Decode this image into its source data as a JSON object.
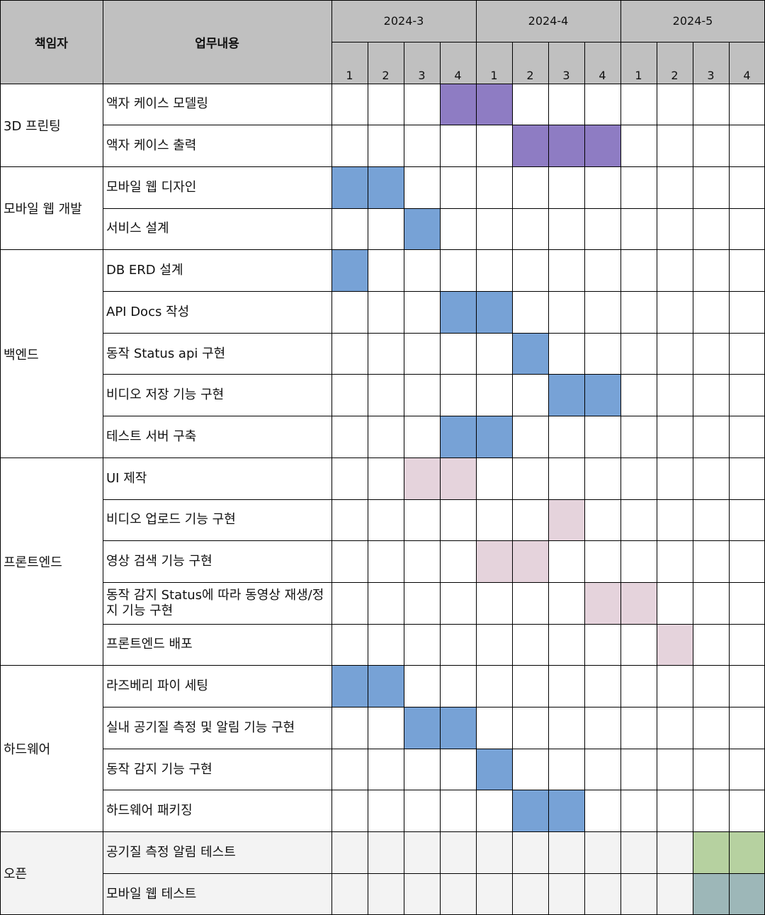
{
  "header": {
    "owner_label": "책임자",
    "task_label": "업무내용",
    "months": [
      "2024-3",
      "2024-4",
      "2024-5"
    ],
    "weeks": [
      "1",
      "2",
      "3",
      "4"
    ]
  },
  "colors": {
    "header_bg": "#c0c0c0",
    "purple": "#8e7cc3",
    "blue": "#77a2d6",
    "pink": "#e5d3dc",
    "green": "#b6d1a0",
    "teal": "#9db7b8",
    "open_row_bg": "#f3f3f3"
  },
  "groups": [
    {
      "name": "3D 프린팅",
      "tasks": [
        {
          "name": "액자 케이스 모델링",
          "color": "purple",
          "weeks": [
            3,
            4
          ]
        },
        {
          "name": "액자 케이스 출력",
          "color": "purple",
          "weeks": [
            5,
            6,
            7
          ]
        }
      ]
    },
    {
      "name": "모바일 웹 개발",
      "tasks": [
        {
          "name": "모바일 웹 디자인",
          "color": "blue",
          "weeks": [
            0,
            1
          ]
        },
        {
          "name": "서비스 설계",
          "color": "blue",
          "weeks": [
            2
          ]
        }
      ]
    },
    {
      "name": "백엔드",
      "tasks": [
        {
          "name": "DB ERD 설계",
          "color": "blue",
          "weeks": [
            0
          ]
        },
        {
          "name": "API Docs 작성",
          "color": "blue",
          "weeks": [
            3,
            4
          ]
        },
        {
          "name": "동작 Status api 구현",
          "color": "blue",
          "weeks": [
            5
          ]
        },
        {
          "name": "비디오 저장 기능 구현",
          "color": "blue",
          "weeks": [
            6,
            7
          ]
        },
        {
          "name": "테스트 서버 구축",
          "color": "blue",
          "weeks": [
            3,
            4
          ]
        }
      ]
    },
    {
      "name": "프론트엔드",
      "tasks": [
        {
          "name": "UI 제작",
          "color": "pink",
          "weeks": [
            2,
            3
          ]
        },
        {
          "name": "비디오 업로드 기능 구현",
          "color": "pink",
          "weeks": [
            6
          ]
        },
        {
          "name": "영상 검색 기능 구현",
          "color": "pink",
          "weeks": [
            4,
            5
          ]
        },
        {
          "name": "동작 감지 Status에 따라 동영상 재생/정지 기능 구현",
          "color": "pink",
          "weeks": [
            7,
            8
          ]
        },
        {
          "name": "프론트엔드 배포",
          "color": "pink",
          "weeks": [
            9
          ]
        }
      ]
    },
    {
      "name": "하드웨어",
      "tasks": [
        {
          "name": "라즈베리 파이 세팅",
          "color": "blue",
          "weeks": [
            0,
            1
          ]
        },
        {
          "name": "실내 공기질 측정 및 알림 기능 구현",
          "color": "blue",
          "weeks": [
            2,
            3
          ]
        },
        {
          "name": "동작 감지 기능 구현",
          "color": "blue",
          "weeks": [
            4
          ]
        },
        {
          "name": "하드웨어 패키징",
          "color": "blue",
          "weeks": [
            5,
            6
          ]
        }
      ]
    },
    {
      "name": "오픈",
      "tasks": [
        {
          "name": "공기질 측정 알림 테스트",
          "color": "green",
          "weeks": [
            10,
            11
          ]
        },
        {
          "name": "모바일 웹 테스트",
          "color": "teal",
          "weeks": [
            10,
            11
          ]
        }
      ]
    }
  ]
}
